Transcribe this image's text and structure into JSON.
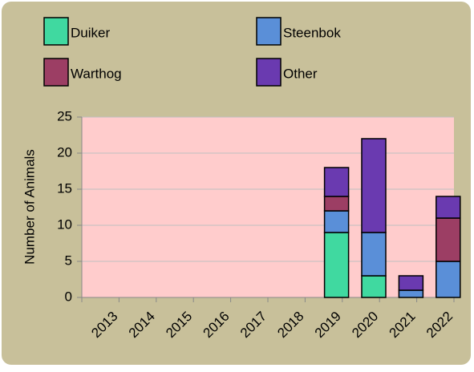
{
  "chart_data": {
    "type": "stacked_bar",
    "y_label": "Number of Animals",
    "categories": [
      "2013",
      "2014",
      "2015",
      "2016",
      "2017",
      "2018",
      "2019",
      "2020",
      "2021",
      "2022"
    ],
    "series": [
      {
        "name": "Duiker",
        "color": "#40d9a0",
        "values": [
          0,
          0,
          0,
          0,
          0,
          0,
          9,
          3,
          0,
          0
        ]
      },
      {
        "name": "Steenbok",
        "color": "#5a8fd8",
        "values": [
          0,
          0,
          0,
          0,
          0,
          0,
          3,
          6,
          1,
          5
        ]
      },
      {
        "name": "Warthog",
        "color": "#9c3e64",
        "values": [
          0,
          0,
          0,
          0,
          0,
          0,
          2,
          0,
          0,
          6
        ]
      },
      {
        "name": "Other",
        "color": "#6a3ab0",
        "values": [
          0,
          0,
          0,
          0,
          0,
          0,
          4,
          13,
          2,
          3
        ]
      }
    ],
    "ylim": [
      0,
      25
    ],
    "yticks": [
      0,
      5,
      10,
      15,
      20,
      25
    ],
    "grid": true
  }
}
